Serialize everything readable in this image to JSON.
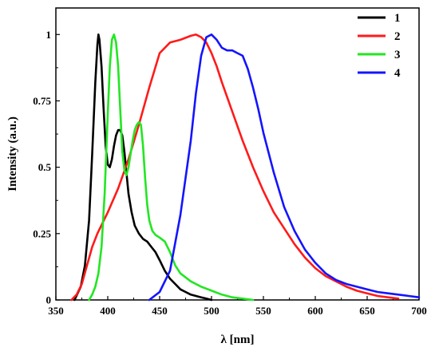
{
  "chart_data": {
    "type": "line",
    "xlabel": "λ [nm]",
    "ylabel": "Intensity (a.u.)",
    "xlim": [
      350,
      700
    ],
    "ylim": [
      0,
      1.1
    ],
    "x_ticks": [
      350,
      400,
      450,
      500,
      550,
      600,
      650,
      700
    ],
    "x_tick_labels": [
      "350",
      "400",
      "450",
      "500",
      "550",
      "600",
      "650",
      "700"
    ],
    "y_ticks": [
      0,
      0.25,
      0.5,
      0.75,
      1
    ],
    "y_tick_labels": [
      "0",
      "0.25",
      "0.5",
      "0.75",
      "1"
    ],
    "grid": false,
    "legend_position": "top-right",
    "series": [
      {
        "name": "1",
        "color": "#000000",
        "x": [
          368,
          374,
          378,
          382,
          385,
          388,
          390,
          391,
          392,
          394,
          396,
          398,
          400,
          402,
          404,
          406,
          408,
          410,
          412,
          414,
          416,
          418,
          420,
          423,
          426,
          430,
          434,
          438,
          442,
          446,
          450,
          455,
          460,
          465,
          470,
          475,
          480,
          485,
          490,
          495,
          500
        ],
        "y": [
          0,
          0.05,
          0.13,
          0.3,
          0.55,
          0.82,
          0.96,
          1.0,
          0.98,
          0.88,
          0.72,
          0.58,
          0.51,
          0.5,
          0.53,
          0.58,
          0.62,
          0.64,
          0.64,
          0.62,
          0.56,
          0.48,
          0.4,
          0.33,
          0.28,
          0.25,
          0.23,
          0.22,
          0.2,
          0.18,
          0.15,
          0.11,
          0.08,
          0.06,
          0.04,
          0.03,
          0.02,
          0.015,
          0.01,
          0.005,
          0
        ]
      },
      {
        "name": "2",
        "color": "#ff1a1a",
        "x": [
          365,
          370,
          375,
          380,
          385,
          390,
          395,
          400,
          410,
          420,
          430,
          440,
          450,
          460,
          470,
          480,
          485,
          490,
          495,
          500,
          505,
          510,
          520,
          530,
          540,
          550,
          560,
          570,
          580,
          590,
          600,
          610,
          620,
          630,
          640,
          650,
          660,
          670,
          680
        ],
        "y": [
          0,
          0.02,
          0.06,
          0.13,
          0.2,
          0.25,
          0.29,
          0.33,
          0.42,
          0.53,
          0.66,
          0.8,
          0.93,
          0.97,
          0.98,
          0.995,
          1.0,
          0.99,
          0.97,
          0.93,
          0.88,
          0.82,
          0.71,
          0.6,
          0.5,
          0.41,
          0.33,
          0.27,
          0.21,
          0.16,
          0.12,
          0.09,
          0.07,
          0.05,
          0.035,
          0.025,
          0.015,
          0.01,
          0.005
        ]
      },
      {
        "name": "3",
        "color": "#22e622",
        "x": [
          382,
          385,
          388,
          391,
          394,
          397,
          400,
          402,
          404,
          406,
          408,
          410,
          412,
          414,
          416,
          418,
          420,
          422,
          424,
          426,
          428,
          430,
          432,
          434,
          436,
          438,
          440,
          443,
          446,
          450,
          455,
          460,
          465,
          470,
          480,
          490,
          500,
          510,
          520,
          530,
          540
        ],
        "y": [
          0,
          0.02,
          0.05,
          0.1,
          0.2,
          0.4,
          0.7,
          0.88,
          0.98,
          1.0,
          0.97,
          0.88,
          0.72,
          0.56,
          0.49,
          0.47,
          0.5,
          0.55,
          0.6,
          0.64,
          0.66,
          0.67,
          0.66,
          0.58,
          0.46,
          0.36,
          0.3,
          0.26,
          0.245,
          0.235,
          0.22,
          0.18,
          0.13,
          0.1,
          0.07,
          0.05,
          0.035,
          0.02,
          0.01,
          0.005,
          0
        ]
      },
      {
        "name": "4",
        "color": "#1414ff",
        "x": [
          440,
          450,
          460,
          470,
          480,
          485,
          490,
          495,
          500,
          505,
          510,
          515,
          520,
          525,
          530,
          535,
          540,
          545,
          550,
          560,
          570,
          580,
          590,
          600,
          610,
          620,
          630,
          640,
          650,
          660,
          670,
          680,
          690,
          700
        ],
        "y": [
          0,
          0.03,
          0.11,
          0.32,
          0.6,
          0.78,
          0.92,
          0.99,
          1.0,
          0.98,
          0.95,
          0.94,
          0.94,
          0.93,
          0.92,
          0.87,
          0.8,
          0.72,
          0.63,
          0.48,
          0.35,
          0.26,
          0.19,
          0.14,
          0.1,
          0.075,
          0.06,
          0.05,
          0.04,
          0.03,
          0.025,
          0.02,
          0.015,
          0.01
        ]
      }
    ]
  }
}
